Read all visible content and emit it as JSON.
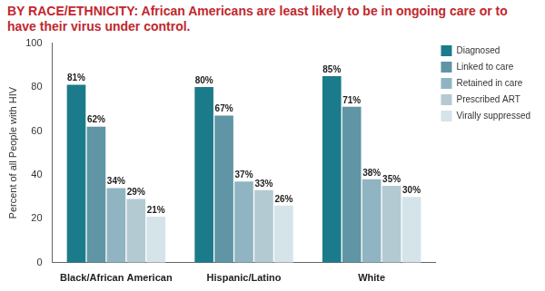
{
  "chart_data": {
    "type": "bar",
    "title": "BY RACE/ETHNICITY: African Americans are least likely to be in ongoing care or to have their virus under control.",
    "y_label": "Percent of all People with HIV",
    "categories": [
      "Black/African American",
      "Hispanic/Latino",
      "White"
    ],
    "series": [
      {
        "name": "Diagnosed",
        "color": "#1b7b8b",
        "values": [
          81,
          80,
          85
        ],
        "value_labels": [
          "81%",
          "80%",
          "85%"
        ]
      },
      {
        "name": "Linked to care",
        "color": "#5f95a5",
        "values": [
          62,
          67,
          71
        ],
        "value_labels": [
          "62%",
          "67%",
          "71%"
        ]
      },
      {
        "name": "Retained in care",
        "color": "#90b4c1",
        "values": [
          34,
          37,
          38
        ],
        "value_labels": [
          "34%",
          "37%",
          "38%"
        ]
      },
      {
        "name": "Prescribed ART",
        "color": "#b3cad3",
        "values": [
          29,
          33,
          35
        ],
        "value_labels": [
          "29%",
          "33%",
          "35%"
        ]
      },
      {
        "name": "Virally suppressed",
        "color": "#d5e4e9",
        "values": [
          21,
          26,
          30
        ],
        "value_labels": [
          "21%",
          "26%",
          "30%"
        ]
      }
    ],
    "ylim": [
      0,
      100
    ],
    "yticks": [
      0,
      20,
      40,
      60,
      80,
      100
    ],
    "grid": false,
    "legend": "right",
    "data_labels": true
  }
}
